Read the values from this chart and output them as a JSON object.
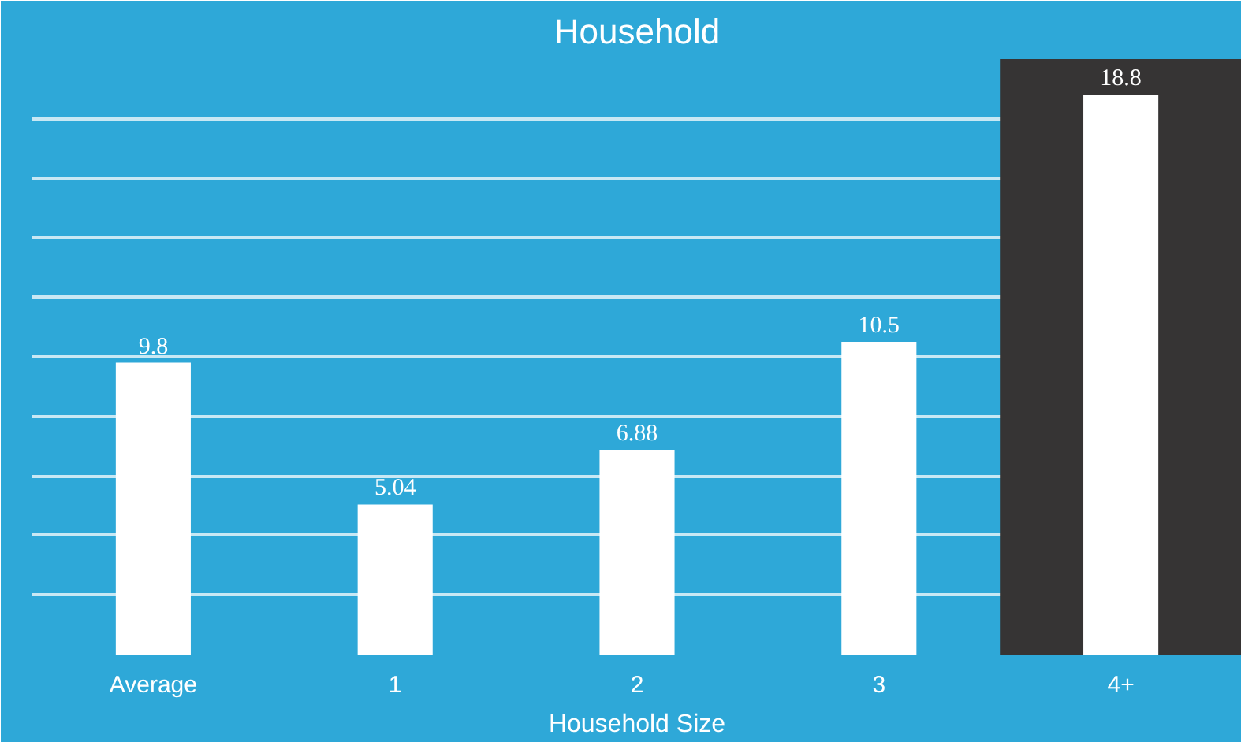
{
  "chart_data": {
    "type": "bar",
    "title": "Household",
    "xlabel": "Household Size",
    "categories": [
      "Average",
      "1",
      "2",
      "3",
      "4+"
    ],
    "values": [
      9.8,
      5.04,
      6.88,
      10.5,
      18.8
    ],
    "color": "#ffffff",
    "ylim": [
      0,
      20
    ],
    "yticks": [
      {
        "value": 0,
        "label": null
      },
      {
        "value": 2,
        "label": null
      },
      {
        "value": 4,
        "label": null
      },
      {
        "value": 6,
        "label": null
      },
      {
        "value": 8,
        "label": null
      },
      {
        "value": 10,
        "label": null
      },
      {
        "value": 12,
        "label": null
      },
      {
        "value": 14,
        "label": null
      },
      {
        "value": 16,
        "label": null
      },
      {
        "value": 18,
        "label": null
      },
      {
        "value": 20,
        "label": null
      }
    ],
    "grid": "y",
    "tick_labels": "x",
    "data_labels": true,
    "bands": [
      {
        "axis": "x",
        "from": "4+",
        "to": "4+",
        "color": "#363434"
      }
    ]
  }
}
